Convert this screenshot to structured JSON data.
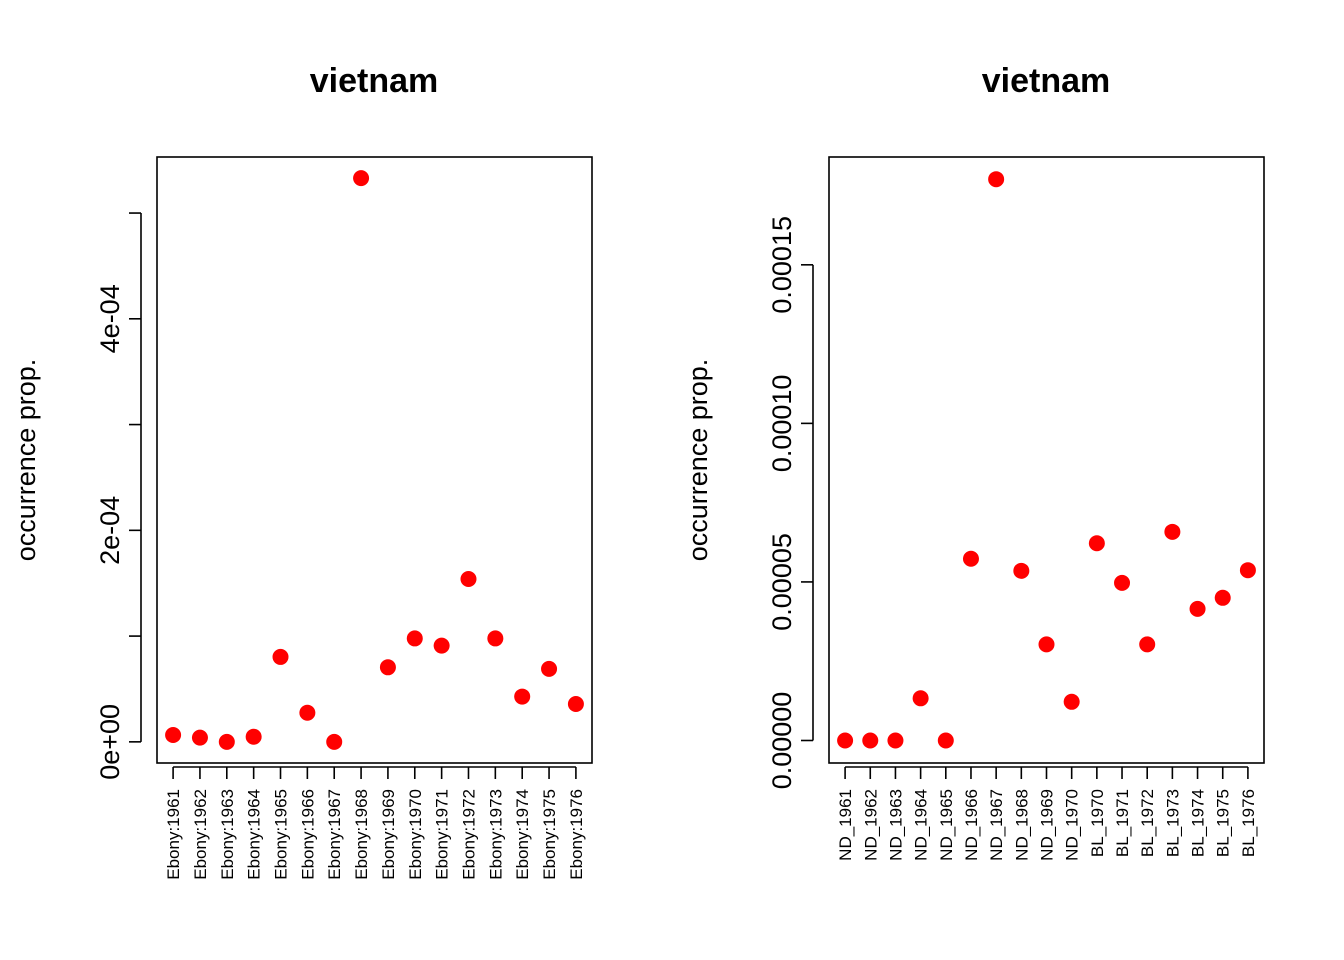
{
  "chart_data": [
    {
      "type": "scatter",
      "title": "vietnam",
      "ylabel": "occurrence prop.",
      "xlabel": "",
      "categories": [
        "Ebony:1961",
        "Ebony:1962",
        "Ebony:1963",
        "Ebony:1964",
        "Ebony:1965",
        "Ebony:1966",
        "Ebony:1967",
        "Ebony:1968",
        "Ebony:1969",
        "Ebony:1970",
        "Ebony:1971",
        "Ebony:1972",
        "Ebony:1973",
        "Ebony:1974",
        "Ebony:1975",
        "Ebony:1976"
      ],
      "values": [
        6.5e-06,
        4e-06,
        0.0,
        4.8e-06,
        8.03e-05,
        2.75e-05,
        0.0,
        0.000533,
        7.05e-05,
        9.78e-05,
        9.1e-05,
        0.000154,
        9.78e-05,
        4.28e-05,
        6.9e-05,
        3.58e-05
      ],
      "ylim": [
        -2e-05,
        0.000553
      ],
      "yticks": [
        0,
        0.0001,
        0.0002,
        0.0003,
        0.0004,
        0.0005
      ],
      "ytick_labels": [
        "0e+00",
        "",
        "2e-04",
        "",
        "4e-04",
        ""
      ],
      "marker_color": "#ff0000",
      "grid": false
    },
    {
      "type": "scatter",
      "title": "vietnam",
      "ylabel": "occurrence prop.",
      "xlabel": "",
      "categories": [
        "ND_1961",
        "ND_1962",
        "ND_1963",
        "ND_1964",
        "ND_1965",
        "ND_1966",
        "ND_1967",
        "ND_1968",
        "ND_1969",
        "ND_1970",
        "BL_1970",
        "BL_1971",
        "BL_1972",
        "BL_1973",
        "BL_1974",
        "BL_1975",
        "BL_1976"
      ],
      "values": [
        0.0,
        0.0,
        0.0,
        1.33e-05,
        0.0,
        5.73e-05,
        0.000177,
        5.35e-05,
        3.03e-05,
        1.22e-05,
        6.22e-05,
        4.97e-05,
        3.03e-05,
        6.58e-05,
        4.15e-05,
        4.5e-05,
        5.37e-05
      ],
      "ylim": [
        -7.1e-06,
        0.000184
      ],
      "yticks": [
        0,
        5e-05,
        0.0001,
        0.00015
      ],
      "ytick_labels": [
        "0.00000",
        "0.00005",
        "0.00010",
        "0.00015"
      ],
      "marker_color": "#ff0000",
      "grid": false
    }
  ]
}
